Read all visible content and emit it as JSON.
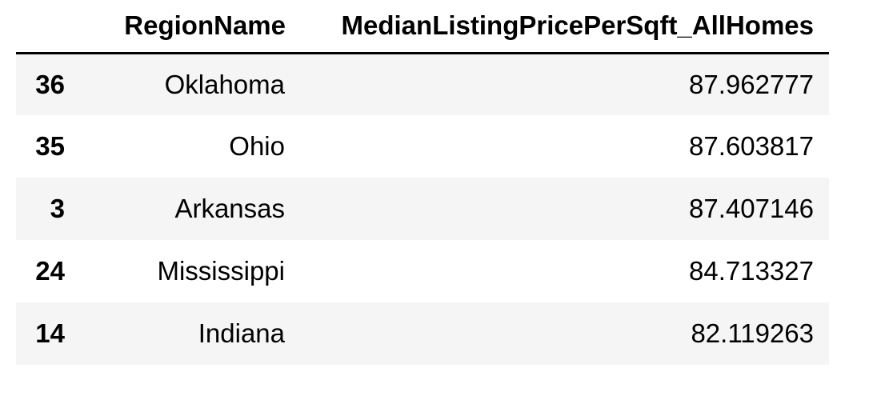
{
  "table": {
    "columns": {
      "index": "",
      "region": "RegionName",
      "price": "MedianListingPricePerSqft_AllHomes"
    },
    "rows": [
      {
        "index": "36",
        "region": "Oklahoma",
        "price": "87.962777"
      },
      {
        "index": "35",
        "region": "Ohio",
        "price": "87.603817"
      },
      {
        "index": "3",
        "region": "Arkansas",
        "price": "87.407146"
      },
      {
        "index": "24",
        "region": "Mississippi",
        "price": "84.713327"
      },
      {
        "index": "14",
        "region": "Indiana",
        "price": "82.119263"
      }
    ]
  },
  "colors": {
    "striped_row": "#f5f5f5",
    "header_rule": "#000000"
  }
}
